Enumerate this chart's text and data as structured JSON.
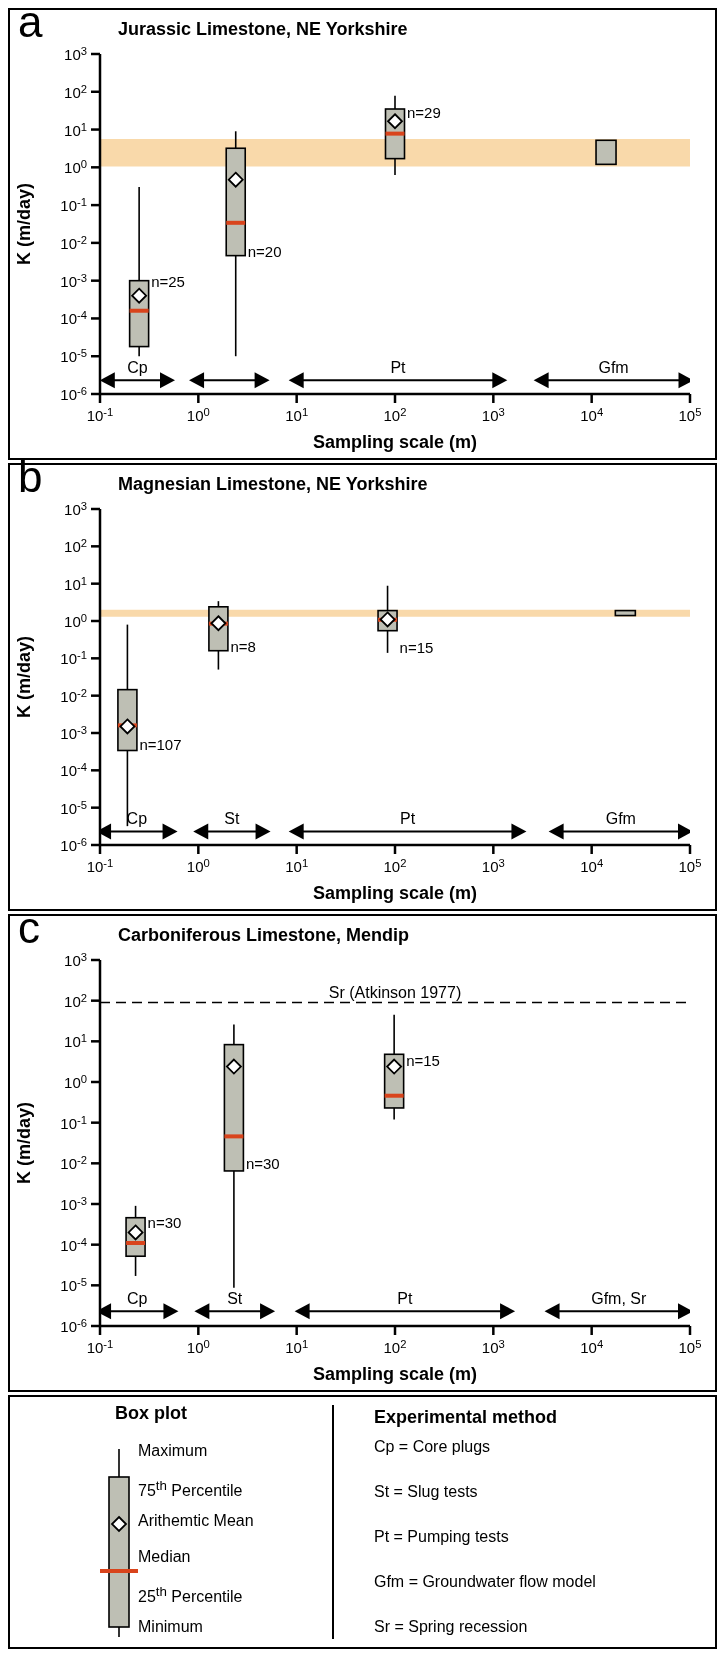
{
  "chart_data": [
    {
      "type": "box",
      "title": "Jurassic Limestone, NE Yorkshire",
      "xlabel": "Sampling scale (m)",
      "ylabel": "K (m/day)",
      "log": "xy",
      "xlim": [
        0.1,
        100000
      ],
      "ylim": [
        1e-06,
        1000
      ],
      "xticks": [
        {
          "value": 0.1,
          "label": "10$^{-1}$"
        },
        {
          "value": 1,
          "label": "10$^{0}$"
        },
        {
          "value": 10,
          "label": "10$^{1}$"
        },
        {
          "value": 100,
          "label": "10$^{2}$"
        },
        {
          "value": 1000,
          "label": "10$^{3}$"
        },
        {
          "value": 10000,
          "label": "10$^{4}$"
        },
        {
          "value": 100000,
          "label": "10$^{5}$"
        }
      ],
      "yticks": [
        {
          "value": 1e-06,
          "label": "10$^{-6}$"
        },
        {
          "value": 1e-05,
          "label": "10$^{-5}$"
        },
        {
          "value": 0.0001,
          "label": "10$^{-4}$"
        },
        {
          "value": 0.001,
          "label": "10$^{-3}$"
        },
        {
          "value": 0.01,
          "label": "10$^{-2}$"
        },
        {
          "value": 0.1,
          "label": "10$^{-1}$"
        },
        {
          "value": 1,
          "label": "10$^{0}$"
        },
        {
          "value": 10,
          "label": "10$^{1}$"
        },
        {
          "value": 100,
          "label": "10$^{2}$"
        },
        {
          "value": 1000,
          "label": "10$^{3}$"
        }
      ],
      "series": [
        {
          "type": "box",
          "color": "#bebfb4",
          "x": [
            0.25,
            2.4,
            100
          ],
          "boxes": [
            {
              "low": 1e-05,
              "q1": 1.8e-05,
              "median": 0.00016,
              "q3": 0.001,
              "high": 0.3,
              "mean": 0.0004
            },
            {
              "low": 1e-05,
              "q1": 0.0046,
              "median": 0.034,
              "q3": 3.2,
              "high": 9,
              "mean": 0.47
            },
            {
              "low": 0.63,
              "q1": 1.7,
              "median": 7.8,
              "q3": 35,
              "high": 78,
              "mean": 16.6
            }
          ]
        },
        {
          "type": "bar",
          "color": "#bebfb4",
          "x": [
            14000
          ],
          "base": [
            1.2
          ],
          "values": [
            4.0
          ]
        },
        {
          "type": "line",
          "name": "Cp",
          "color": "#000000",
          "marker": "triangle",
          "x": [
            0.12,
            0.48
          ],
          "values": [
            2.3e-06,
            2.3e-06
          ]
        },
        {
          "type": "line",
          "color": "#000000",
          "marker": "triangle",
          "x": [
            0.97,
            4.4
          ],
          "values": [
            2.3e-06,
            2.3e-06
          ]
        },
        {
          "type": "line",
          "name": "Pt",
          "color": "#000000",
          "marker": "triangle",
          "x": [
            10,
            1150
          ],
          "values": [
            2.3e-06,
            2.3e-06
          ]
        },
        {
          "type": "line",
          "name": "Gfm",
          "color": "#000000",
          "marker": "triangle",
          "x": [
            3100,
            90000
          ],
          "values": [
            2.3e-06,
            2.3e-06
          ]
        }
      ],
      "bands": [
        {
          "axis": "y",
          "from": 1.05,
          "to": 5.6,
          "color": "#f9d9aa"
        }
      ],
      "annotations": [
        "a",
        {
          "text": "n=25",
          "x": 0.25,
          "y": 0.001
        },
        {
          "text": "n=20",
          "x": 2.4,
          "y": 0.006
        },
        {
          "text": "n=29",
          "x": 100,
          "y": 29
        }
      ]
    },
    {
      "type": "box",
      "title": "Magnesian Limestone, NE Yorkshire",
      "xlabel": "Sampling scale (m)",
      "ylabel": "K (m/day)",
      "log": "xy",
      "xlim": [
        0.1,
        100000
      ],
      "ylim": [
        1e-06,
        1000
      ],
      "xticks": [
        {
          "value": 0.1,
          "label": "10$^{-1}$"
        },
        {
          "value": 1,
          "label": "10$^{0}$"
        },
        {
          "value": 10,
          "label": "10$^{1}$"
        },
        {
          "value": 100,
          "label": "10$^{2}$"
        },
        {
          "value": 1000,
          "label": "10$^{3}$"
        },
        {
          "value": 10000,
          "label": "10$^{4}$"
        },
        {
          "value": 100000,
          "label": "10$^{5}$"
        }
      ],
      "yticks": [
        {
          "value": 1e-06,
          "label": "10$^{-6}$"
        },
        {
          "value": 1e-05,
          "label": "10$^{-5}$"
        },
        {
          "value": 0.0001,
          "label": "10$^{-4}$"
        },
        {
          "value": 0.001,
          "label": "10$^{-3}$"
        },
        {
          "value": 0.01,
          "label": "10$^{-2}$"
        },
        {
          "value": 0.1,
          "label": "10$^{-1}$"
        },
        {
          "value": 1,
          "label": "10$^{0}$"
        },
        {
          "value": 10,
          "label": "10$^{1}$"
        },
        {
          "value": 100,
          "label": "10$^{2}$"
        },
        {
          "value": 1000,
          "label": "10$^{3}$"
        }
      ],
      "series": [
        {
          "type": "box",
          "color": "#bebfb4",
          "x": [
            0.19,
            1.6,
            84
          ],
          "boxes": [
            {
              "low": 3.2e-06,
              "q1": 0.00034,
              "median": 0.0016,
              "q3": 0.0145,
              "high": 0.8,
              "mean": 0.0015
            },
            {
              "low": 0.05,
              "q1": 0.16,
              "median": 0.85,
              "q3": 2.4,
              "high": 3.4,
              "mean": 0.87
            },
            {
              "low": 0.14,
              "q1": 0.55,
              "median": 1.08,
              "q3": 1.9,
              "high": 8.8,
              "mean": 1.1
            }
          ]
        },
        {
          "type": "bar",
          "color": "#bebfb4",
          "x": [
            22000
          ],
          "base": [
            1.4
          ],
          "values": [
            0.5
          ]
        },
        {
          "type": "line",
          "name": "Cp",
          "color": "#000000",
          "marker": "triangle",
          "x": [
            0.11,
            0.51
          ],
          "values": [
            2.3e-06,
            2.3e-06
          ]
        },
        {
          "type": "line",
          "name": "St",
          "color": "#000000",
          "marker": "triangle",
          "x": [
            1.07,
            4.5
          ],
          "values": [
            2.3e-06,
            2.3e-06
          ]
        },
        {
          "type": "line",
          "name": "Pt",
          "color": "#000000",
          "marker": "triangle",
          "x": [
            10,
            1800
          ],
          "values": [
            2.3e-06,
            2.3e-06
          ]
        },
        {
          "type": "line",
          "name": "Gfm",
          "color": "#000000",
          "marker": "triangle",
          "x": [
            4400,
            89000
          ],
          "values": [
            2.3e-06,
            2.3e-06
          ]
        }
      ],
      "bands": [
        {
          "axis": "y",
          "from": 1.3,
          "to": 2.0,
          "color": "#f9d9aa"
        }
      ],
      "annotations": [
        "b",
        {
          "text": "n=107",
          "x": 0.19,
          "y": 0.0005
        },
        {
          "text": "n=8",
          "x": 1.6,
          "y": 0.22
        },
        {
          "text": "n=15",
          "x": 84,
          "y": 0.2
        }
      ]
    },
    {
      "type": "box",
      "title": "Carboniferous Limestone, Mendip",
      "xlabel": "Sampling scale (m)",
      "ylabel": "K (m/day)",
      "log": "xy",
      "xlim": [
        0.1,
        100000
      ],
      "ylim": [
        1e-06,
        1000
      ],
      "xticks": [
        {
          "value": 0.1,
          "label": "10$^{-1}$"
        },
        {
          "value": 1,
          "label": "10$^{0}$"
        },
        {
          "value": 10,
          "label": "10$^{1}$"
        },
        {
          "value": 100,
          "label": "10$^{2}$"
        },
        {
          "value": 1000,
          "label": "10$^{3}$"
        },
        {
          "value": 10000,
          "label": "10$^{4}$"
        },
        {
          "value": 100000,
          "label": "10$^{5}$"
        }
      ],
      "yticks": [
        {
          "value": 1e-06,
          "label": "10$^{-6}$"
        },
        {
          "value": 1e-05,
          "label": "10$^{-5}$"
        },
        {
          "value": 0.0001,
          "label": "10$^{-4}$"
        },
        {
          "value": 0.001,
          "label": "10$^{-3}$"
        },
        {
          "value": 0.01,
          "label": "10$^{-2}$"
        },
        {
          "value": 0.1,
          "label": "10$^{-1}$"
        },
        {
          "value": 1,
          "label": "10$^{0}$"
        },
        {
          "value": 10,
          "label": "10$^{1}$"
        },
        {
          "value": 100,
          "label": "10$^{2}$"
        },
        {
          "value": 1000,
          "label": "10$^{3}$"
        }
      ],
      "series": [
        {
          "type": "box",
          "color": "#bebfb4",
          "x": [
            0.23,
            2.3,
            98
          ],
          "boxes": [
            {
              "low": 1.7e-05,
              "q1": 5.2e-05,
              "median": 0.00011,
              "q3": 0.00046,
              "high": 0.0009,
              "mean": 0.0002
            },
            {
              "low": 8.7e-06,
              "q1": 0.0065,
              "median": 0.046,
              "q3": 8.3,
              "high": 26,
              "mean": 2.4
            },
            {
              "low": 0.12,
              "q1": 0.23,
              "median": 0.46,
              "q3": 4.8,
              "high": 45,
              "mean": 2.4
            }
          ]
        },
        {
          "type": "line",
          "name": "Cp",
          "color": "#000000",
          "marker": "triangle",
          "x": [
            0.11,
            0.52
          ],
          "values": [
            2.3e-06,
            2.3e-06
          ]
        },
        {
          "type": "line",
          "name": "St",
          "color": "#000000",
          "marker": "triangle",
          "x": [
            1.1,
            5.0
          ],
          "values": [
            2.3e-06,
            2.3e-06
          ]
        },
        {
          "type": "line",
          "name": "Pt",
          "color": "#000000",
          "marker": "triangle",
          "x": [
            11.5,
            1380
          ],
          "values": [
            2.3e-06,
            2.3e-06
          ]
        },
        {
          "type": "line",
          "name": "Gfm, Sr",
          "color": "#000000",
          "marker": "triangle",
          "x": [
            4000,
            89000
          ],
          "values": [
            2.3e-06,
            2.3e-06
          ]
        }
      ],
      "ref_lines": [
        {
          "axis": "y",
          "value": 90,
          "label": "Sr (Atkinson 1977)",
          "color": "#000000",
          "line_style": "dashed"
        }
      ],
      "annotations": [
        "c",
        {
          "text": "n=30",
          "x": 0.23,
          "y": 0.00037
        },
        {
          "text": "n=30",
          "x": 2.3,
          "y": 0.01
        },
        {
          "text": "n=15",
          "x": 98,
          "y": 3.4
        }
      ]
    },
    {
      "type": "other",
      "title": "Box plot",
      "annotations": [
        "Maximum",
        "75$^{th}$ Percentile",
        "Arithemtic Mean",
        "Median",
        "25$^{th}$ Percentile",
        "Minimum"
      ]
    },
    {
      "type": "other",
      "title": "Experimental method",
      "annotations": [
        "Cp = Core plugs",
        "St = Slug tests",
        "Pt = Pumping tests",
        "Gfm = Groundwater flow model",
        "Sr = Spring recession"
      ]
    }
  ]
}
